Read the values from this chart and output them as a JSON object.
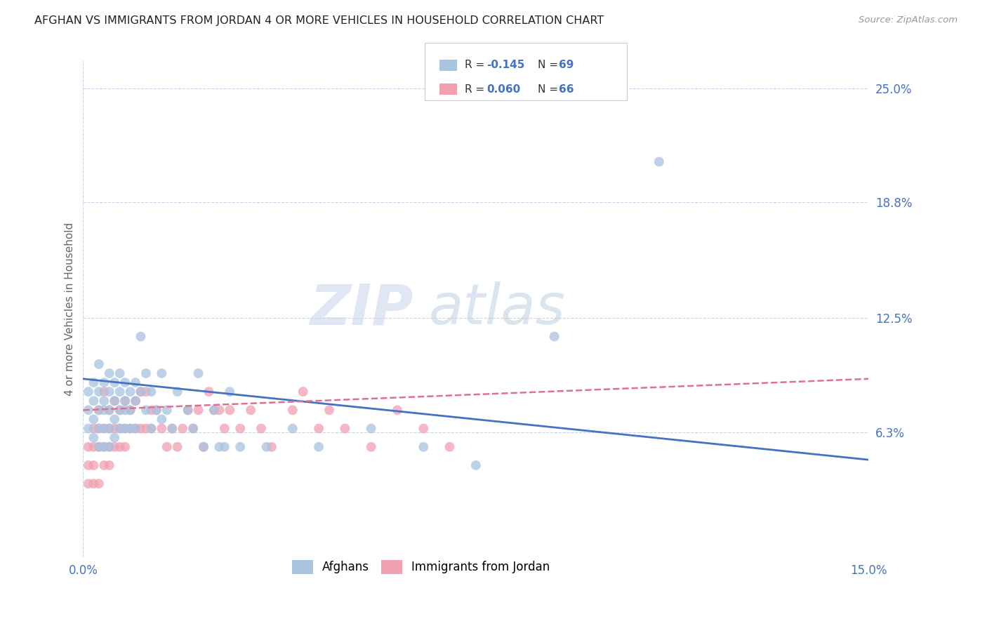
{
  "title": "AFGHAN VS IMMIGRANTS FROM JORDAN 4 OR MORE VEHICLES IN HOUSEHOLD CORRELATION CHART",
  "source": "Source: ZipAtlas.com",
  "ylabel_label": "4 or more Vehicles in Household",
  "xmin": 0.0,
  "xmax": 0.15,
  "ymin": -0.005,
  "ymax": 0.265,
  "afghan_R": -0.145,
  "afghan_N": 69,
  "jordan_R": 0.06,
  "jordan_N": 66,
  "afghan_color": "#a8c4e0",
  "jordan_color": "#f0a0b0",
  "afghan_line_color": "#4472c4",
  "jordan_line_color": "#e07090",
  "background_color": "#ffffff",
  "grid_color": "#c8d4e8",
  "ytick_vals": [
    0.063,
    0.125,
    0.188,
    0.25
  ],
  "ytick_labels": [
    "6.3%",
    "12.5%",
    "18.8%",
    "25.0%"
  ],
  "xtick_vals": [
    0.0,
    0.15
  ],
  "xtick_labels": [
    "0.0%",
    "15.0%"
  ],
  "legend_labels": [
    "Afghans",
    "Immigrants from Jordan"
  ],
  "afghan_x": [
    0.001,
    0.001,
    0.001,
    0.002,
    0.002,
    0.002,
    0.002,
    0.003,
    0.003,
    0.003,
    0.003,
    0.003,
    0.004,
    0.004,
    0.004,
    0.004,
    0.004,
    0.005,
    0.005,
    0.005,
    0.005,
    0.005,
    0.006,
    0.006,
    0.006,
    0.006,
    0.007,
    0.007,
    0.007,
    0.007,
    0.008,
    0.008,
    0.008,
    0.008,
    0.009,
    0.009,
    0.009,
    0.01,
    0.01,
    0.01,
    0.011,
    0.011,
    0.012,
    0.012,
    0.013,
    0.013,
    0.014,
    0.015,
    0.015,
    0.016,
    0.017,
    0.018,
    0.02,
    0.021,
    0.022,
    0.023,
    0.025,
    0.026,
    0.027,
    0.028,
    0.03,
    0.035,
    0.04,
    0.045,
    0.055,
    0.065,
    0.075,
    0.09,
    0.11
  ],
  "afghan_y": [
    0.085,
    0.075,
    0.065,
    0.09,
    0.08,
    0.07,
    0.06,
    0.1,
    0.085,
    0.075,
    0.065,
    0.055,
    0.09,
    0.08,
    0.075,
    0.065,
    0.055,
    0.095,
    0.085,
    0.075,
    0.065,
    0.055,
    0.09,
    0.08,
    0.07,
    0.06,
    0.095,
    0.085,
    0.075,
    0.065,
    0.09,
    0.08,
    0.075,
    0.065,
    0.085,
    0.075,
    0.065,
    0.09,
    0.08,
    0.065,
    0.115,
    0.085,
    0.095,
    0.075,
    0.085,
    0.065,
    0.075,
    0.095,
    0.07,
    0.075,
    0.065,
    0.085,
    0.075,
    0.065,
    0.095,
    0.055,
    0.075,
    0.055,
    0.055,
    0.085,
    0.055,
    0.055,
    0.065,
    0.055,
    0.065,
    0.055,
    0.045,
    0.115,
    0.21
  ],
  "jordan_x": [
    0.001,
    0.001,
    0.001,
    0.002,
    0.002,
    0.002,
    0.002,
    0.003,
    0.003,
    0.003,
    0.003,
    0.004,
    0.004,
    0.004,
    0.004,
    0.005,
    0.005,
    0.005,
    0.005,
    0.006,
    0.006,
    0.006,
    0.007,
    0.007,
    0.007,
    0.008,
    0.008,
    0.008,
    0.009,
    0.009,
    0.01,
    0.01,
    0.011,
    0.011,
    0.012,
    0.012,
    0.013,
    0.013,
    0.014,
    0.015,
    0.016,
    0.017,
    0.018,
    0.019,
    0.02,
    0.021,
    0.022,
    0.023,
    0.024,
    0.025,
    0.026,
    0.027,
    0.028,
    0.03,
    0.032,
    0.034,
    0.036,
    0.04,
    0.042,
    0.045,
    0.047,
    0.05,
    0.055,
    0.06,
    0.065,
    0.07
  ],
  "jordan_y": [
    0.055,
    0.045,
    0.035,
    0.065,
    0.055,
    0.045,
    0.035,
    0.075,
    0.065,
    0.055,
    0.035,
    0.085,
    0.065,
    0.055,
    0.045,
    0.075,
    0.065,
    0.055,
    0.045,
    0.08,
    0.065,
    0.055,
    0.075,
    0.065,
    0.055,
    0.08,
    0.065,
    0.055,
    0.075,
    0.065,
    0.08,
    0.065,
    0.085,
    0.065,
    0.085,
    0.065,
    0.075,
    0.065,
    0.075,
    0.065,
    0.055,
    0.065,
    0.055,
    0.065,
    0.075,
    0.065,
    0.075,
    0.055,
    0.085,
    0.075,
    0.075,
    0.065,
    0.075,
    0.065,
    0.075,
    0.065,
    0.055,
    0.075,
    0.085,
    0.065,
    0.075,
    0.065,
    0.055,
    0.075,
    0.065,
    0.055
  ]
}
